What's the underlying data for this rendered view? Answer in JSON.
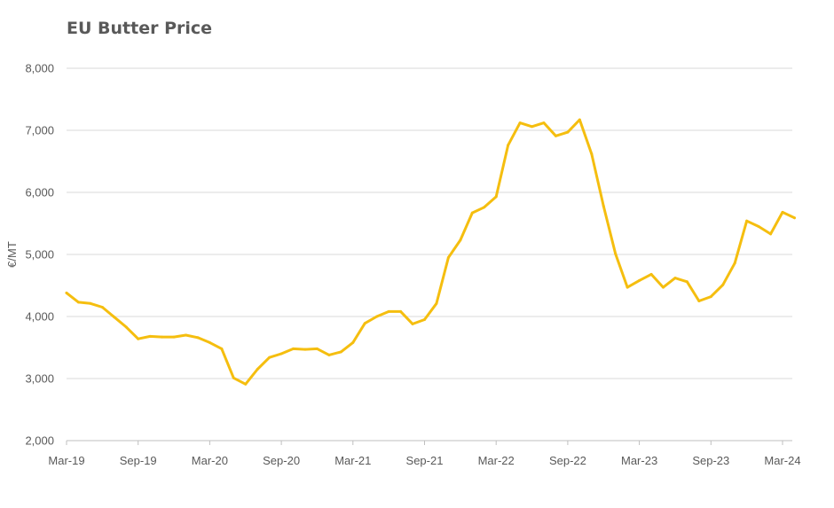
{
  "chart_data": {
    "type": "line",
    "title": "EU Butter Price",
    "xlabel": "",
    "ylabel": "€/MT",
    "ylim": [
      2000,
      8000
    ],
    "y_ticks": [
      2000,
      3000,
      4000,
      5000,
      6000,
      7000,
      8000
    ],
    "y_tick_labels": [
      "2,000",
      "3,000",
      "4,000",
      "5,000",
      "6,000",
      "7,000",
      "8,000"
    ],
    "x_tick_labels": [
      "Mar-19",
      "Sep-19",
      "Mar-20",
      "Sep-20",
      "Mar-21",
      "Sep-21",
      "Mar-22",
      "Sep-22",
      "Mar-23",
      "Sep-23",
      "Mar-24"
    ],
    "grid": true,
    "legend": "none",
    "colors": {
      "line": "#F5BE0F",
      "grid": "#D9D9D9",
      "axis": "#BFBFBF",
      "text": "#595959"
    },
    "x": [
      "Mar-19",
      "Apr-19",
      "May-19",
      "Jun-19",
      "Jul-19",
      "Aug-19",
      "Sep-19",
      "Oct-19",
      "Nov-19",
      "Dec-19",
      "Jan-20",
      "Feb-20",
      "Mar-20",
      "Apr-20",
      "May-20",
      "Jun-20",
      "Jul-20",
      "Aug-20",
      "Sep-20",
      "Oct-20",
      "Nov-20",
      "Dec-20",
      "Jan-21",
      "Feb-21",
      "Mar-21",
      "Apr-21",
      "May-21",
      "Jun-21",
      "Jul-21",
      "Aug-21",
      "Sep-21",
      "Oct-21",
      "Nov-21",
      "Dec-21",
      "Jan-22",
      "Feb-22",
      "Mar-22",
      "Apr-22",
      "May-22",
      "Jun-22",
      "Jul-22",
      "Aug-22",
      "Sep-22",
      "Oct-22",
      "Nov-22",
      "Dec-22",
      "Jan-23",
      "Feb-23",
      "Mar-23",
      "Apr-23",
      "May-23",
      "Jun-23",
      "Jul-23",
      "Aug-23",
      "Sep-23",
      "Oct-23",
      "Nov-23",
      "Dec-23",
      "Jan-24",
      "Feb-24",
      "Mar-24",
      "Apr-24"
    ],
    "series": [
      {
        "values": [
          4380,
          4230,
          4210,
          4150,
          3990,
          3830,
          3640,
          3680,
          3670,
          3670,
          3700,
          3660,
          3580,
          3480,
          3010,
          2910,
          3150,
          3340,
          3400,
          3480,
          3470,
          3480,
          3380,
          3430,
          3580,
          3890,
          4000,
          4080,
          4080,
          3880,
          3950,
          4210,
          4950,
          5230,
          5670,
          5760,
          5930,
          6760,
          7120,
          7060,
          7120,
          6910,
          6970,
          7170,
          6620,
          5780,
          5010,
          4470,
          4580,
          4680,
          4470,
          4620,
          4560,
          4250,
          4320,
          4510,
          4860,
          5540,
          5450,
          5330,
          5680,
          5590
        ]
      }
    ]
  }
}
